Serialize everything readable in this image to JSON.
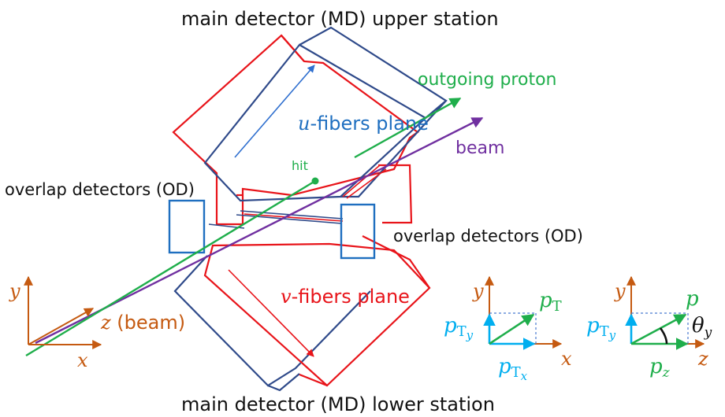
{
  "titles": {
    "upper": "main detector (MD) upper station",
    "lower": "main detector (MD) lower station"
  },
  "labels": {
    "outgoing_proton": "outgoing proton",
    "beam": "beam",
    "hit": "hit",
    "overlap_left": "overlap detectors (OD)",
    "overlap_right": "overlap detectors (OD)",
    "u_plane_var": "u",
    "u_plane_rest": "-fibers plane",
    "v_plane_var": "v",
    "v_plane_rest": "-fibers plane"
  },
  "axes_main": {
    "y": "y",
    "x": "x",
    "z": "z",
    "z_suffix": " (beam)"
  },
  "pt_panel": {
    "y": "y",
    "x": "x",
    "p": "p",
    "p_sub": "T",
    "pty": "p",
    "pty_sub": "T",
    "pty_subsub": "y",
    "ptx": "p",
    "ptx_sub": "T",
    "ptx_subsub": "x"
  },
  "pz_panel": {
    "y": "y",
    "z": "z",
    "p": "p",
    "pty": "p",
    "pty_sub": "T",
    "pty_subsub": "y",
    "pz": "p",
    "pz_sub": "z",
    "theta": "θ",
    "theta_sub": "y"
  },
  "colors": {
    "red": "#e8141a",
    "blue": "#2f4a8a",
    "light_blue": "#1f6fc0",
    "green": "#1fae4b",
    "purple": "#7030a0",
    "orange": "#c55a11",
    "cyan": "#00aeef",
    "text": "#111111"
  }
}
